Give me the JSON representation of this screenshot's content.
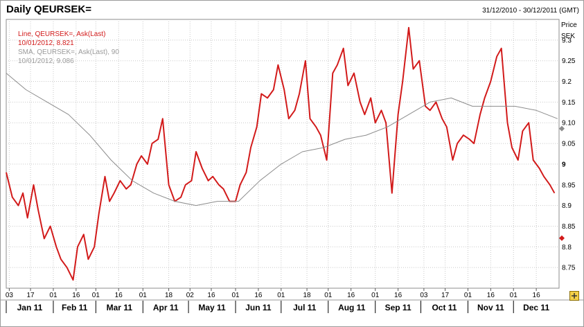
{
  "window": {
    "title": "Daily QEURSEK=",
    "range": "31/12/2010 - 30/12/2011 (GMT)"
  },
  "legend": {
    "line_title": "Line, QEURSEK=, Ask(Last)",
    "line_value": "10/01/2012, 8.821",
    "sma_title": "SMA, QEURSEK=, Ask(Last), 90",
    "sma_value": "10/01/2012, 9.086"
  },
  "colors": {
    "line": "#d21a1a",
    "sma": "#8c8c8c",
    "grid": "#c8c8c8"
  },
  "icons": [
    "expand-icon"
  ],
  "chart_data": {
    "type": "line",
    "title": "Daily QEURSEK=",
    "ylabel": "Price SEK",
    "ylim": [
      8.7,
      9.35
    ],
    "yticks": [
      "8.75",
      "8.8",
      "8.85",
      "8.9",
      "8.95",
      "9",
      "9.05",
      "9.10",
      "9.15",
      "9.2",
      "9.25",
      "9.3"
    ],
    "xlim": [
      "2011-01-01",
      "2011-12-31"
    ],
    "x_day_ticks": [
      {
        "date": "2011-01-03",
        "label": "03"
      },
      {
        "date": "2011-01-17",
        "label": "17"
      },
      {
        "date": "2011-02-01",
        "label": "01"
      },
      {
        "date": "2011-02-16",
        "label": "16"
      },
      {
        "date": "2011-03-01",
        "label": "01"
      },
      {
        "date": "2011-03-16",
        "label": "16"
      },
      {
        "date": "2011-04-01",
        "label": "01"
      },
      {
        "date": "2011-04-18",
        "label": "18"
      },
      {
        "date": "2011-05-02",
        "label": "02"
      },
      {
        "date": "2011-05-16",
        "label": "16"
      },
      {
        "date": "2011-06-01",
        "label": "01"
      },
      {
        "date": "2011-06-16",
        "label": "16"
      },
      {
        "date": "2011-07-01",
        "label": "01"
      },
      {
        "date": "2011-07-18",
        "label": "18"
      },
      {
        "date": "2011-08-01",
        "label": "01"
      },
      {
        "date": "2011-08-16",
        "label": "16"
      },
      {
        "date": "2011-09-01",
        "label": "01"
      },
      {
        "date": "2011-09-16",
        "label": "16"
      },
      {
        "date": "2011-10-03",
        "label": "03"
      },
      {
        "date": "2011-10-17",
        "label": "17"
      },
      {
        "date": "2011-11-01",
        "label": "01"
      },
      {
        "date": "2011-11-16",
        "label": "16"
      },
      {
        "date": "2011-12-01",
        "label": "01"
      },
      {
        "date": "2011-12-16",
        "label": "16"
      }
    ],
    "x_month_labels": [
      {
        "date": "2011-01-01",
        "label": "Jan 11"
      },
      {
        "date": "2011-02-01",
        "label": "Feb 11"
      },
      {
        "date": "2011-03-01",
        "label": "Mar 11"
      },
      {
        "date": "2011-04-01",
        "label": "Apr 11"
      },
      {
        "date": "2011-05-01",
        "label": "May 11"
      },
      {
        "date": "2011-06-01",
        "label": "Jun 11"
      },
      {
        "date": "2011-07-01",
        "label": "Jul 11"
      },
      {
        "date": "2011-08-01",
        "label": "Aug 11"
      },
      {
        "date": "2011-09-01",
        "label": "Sep 11"
      },
      {
        "date": "2011-10-01",
        "label": "Oct 11"
      },
      {
        "date": "2011-11-01",
        "label": "Nov 11"
      },
      {
        "date": "2011-12-01",
        "label": "Dec 11"
      }
    ],
    "markers": [
      {
        "series": "SMA",
        "value": 9.086
      },
      {
        "series": "Line",
        "value": 8.821
      }
    ],
    "series": [
      {
        "name": "Line, QEURSEK=, Ask(Last)",
        "x": [
          "2011-01-01",
          "2011-01-05",
          "2011-01-09",
          "2011-01-12",
          "2011-01-15",
          "2011-01-19",
          "2011-01-22",
          "2011-01-26",
          "2011-01-30",
          "2011-02-03",
          "2011-02-06",
          "2011-02-10",
          "2011-02-14",
          "2011-02-17",
          "2011-02-21",
          "2011-02-24",
          "2011-02-28",
          "2011-03-03",
          "2011-03-07",
          "2011-03-10",
          "2011-03-13",
          "2011-03-17",
          "2011-03-21",
          "2011-03-24",
          "2011-03-28",
          "2011-03-31",
          "2011-04-04",
          "2011-04-07",
          "2011-04-11",
          "2011-04-14",
          "2011-04-18",
          "2011-04-22",
          "2011-04-26",
          "2011-04-29",
          "2011-05-03",
          "2011-05-06",
          "2011-05-10",
          "2011-05-14",
          "2011-05-17",
          "2011-05-21",
          "2011-05-24",
          "2011-05-28",
          "2011-06-01",
          "2011-06-04",
          "2011-06-08",
          "2011-06-11",
          "2011-06-15",
          "2011-06-18",
          "2011-06-22",
          "2011-06-26",
          "2011-06-29",
          "2011-07-03",
          "2011-07-06",
          "2011-07-10",
          "2011-07-13",
          "2011-07-17",
          "2011-07-20",
          "2011-07-24",
          "2011-07-27",
          "2011-07-31",
          "2011-08-04",
          "2011-08-07",
          "2011-08-11",
          "2011-08-14",
          "2011-08-18",
          "2011-08-22",
          "2011-08-25",
          "2011-08-29",
          "2011-09-01",
          "2011-09-05",
          "2011-09-08",
          "2011-09-12",
          "2011-09-16",
          "2011-09-19",
          "2011-09-23",
          "2011-09-26",
          "2011-09-30",
          "2011-10-04",
          "2011-10-07",
          "2011-10-11",
          "2011-10-15",
          "2011-10-18",
          "2011-10-22",
          "2011-10-25",
          "2011-10-29",
          "2011-11-02",
          "2011-11-05",
          "2011-11-09",
          "2011-11-12",
          "2011-11-16",
          "2011-11-20",
          "2011-11-23",
          "2011-11-27",
          "2011-11-30",
          "2011-12-04",
          "2011-12-07",
          "2011-12-11",
          "2011-12-14",
          "2011-12-18",
          "2011-12-21",
          "2011-12-25",
          "2011-12-28"
        ],
        "values": [
          8.98,
          8.92,
          8.9,
          8.93,
          8.87,
          8.95,
          8.89,
          8.82,
          8.85,
          8.8,
          8.77,
          8.75,
          8.72,
          8.8,
          8.83,
          8.77,
          8.8,
          8.88,
          8.97,
          8.91,
          8.93,
          8.96,
          8.94,
          8.95,
          9.0,
          9.02,
          9.0,
          9.05,
          9.06,
          9.11,
          8.95,
          8.91,
          8.92,
          8.95,
          8.96,
          9.03,
          8.99,
          8.96,
          8.97,
          8.95,
          8.94,
          8.91,
          8.91,
          8.95,
          8.98,
          9.04,
          9.09,
          9.17,
          9.16,
          9.18,
          9.24,
          9.18,
          9.11,
          9.13,
          9.17,
          9.25,
          9.11,
          9.09,
          9.07,
          9.01,
          9.22,
          9.24,
          9.28,
          9.19,
          9.22,
          9.15,
          9.12,
          9.16,
          9.1,
          9.13,
          9.1,
          8.93,
          9.12,
          9.2,
          9.33,
          9.23,
          9.25,
          9.14,
          9.13,
          9.15,
          9.11,
          9.09,
          9.01,
          9.05,
          9.07,
          9.06,
          9.05,
          9.12,
          9.16,
          9.2,
          9.26,
          9.28,
          9.1,
          9.04,
          9.01,
          9.08,
          9.1,
          9.01,
          8.99,
          8.97,
          8.95,
          8.93
        ]
      },
      {
        "name": "SMA, QEURSEK=, Ask(Last), 90",
        "x": [
          "2011-01-01",
          "2011-01-14",
          "2011-01-28",
          "2011-02-11",
          "2011-02-25",
          "2011-03-11",
          "2011-03-25",
          "2011-04-08",
          "2011-04-22",
          "2011-05-06",
          "2011-05-20",
          "2011-06-03",
          "2011-06-17",
          "2011-07-01",
          "2011-07-15",
          "2011-07-29",
          "2011-08-12",
          "2011-08-26",
          "2011-09-09",
          "2011-09-23",
          "2011-10-07",
          "2011-10-21",
          "2011-11-04",
          "2011-11-18",
          "2011-12-02",
          "2011-12-16",
          "2011-12-30"
        ],
        "values": [
          9.22,
          9.18,
          9.15,
          9.12,
          9.07,
          9.01,
          8.96,
          8.93,
          8.91,
          8.9,
          8.91,
          8.91,
          8.96,
          9.0,
          9.03,
          9.04,
          9.06,
          9.07,
          9.09,
          9.12,
          9.15,
          9.16,
          9.14,
          9.14,
          9.14,
          9.13,
          9.11
        ]
      }
    ]
  }
}
